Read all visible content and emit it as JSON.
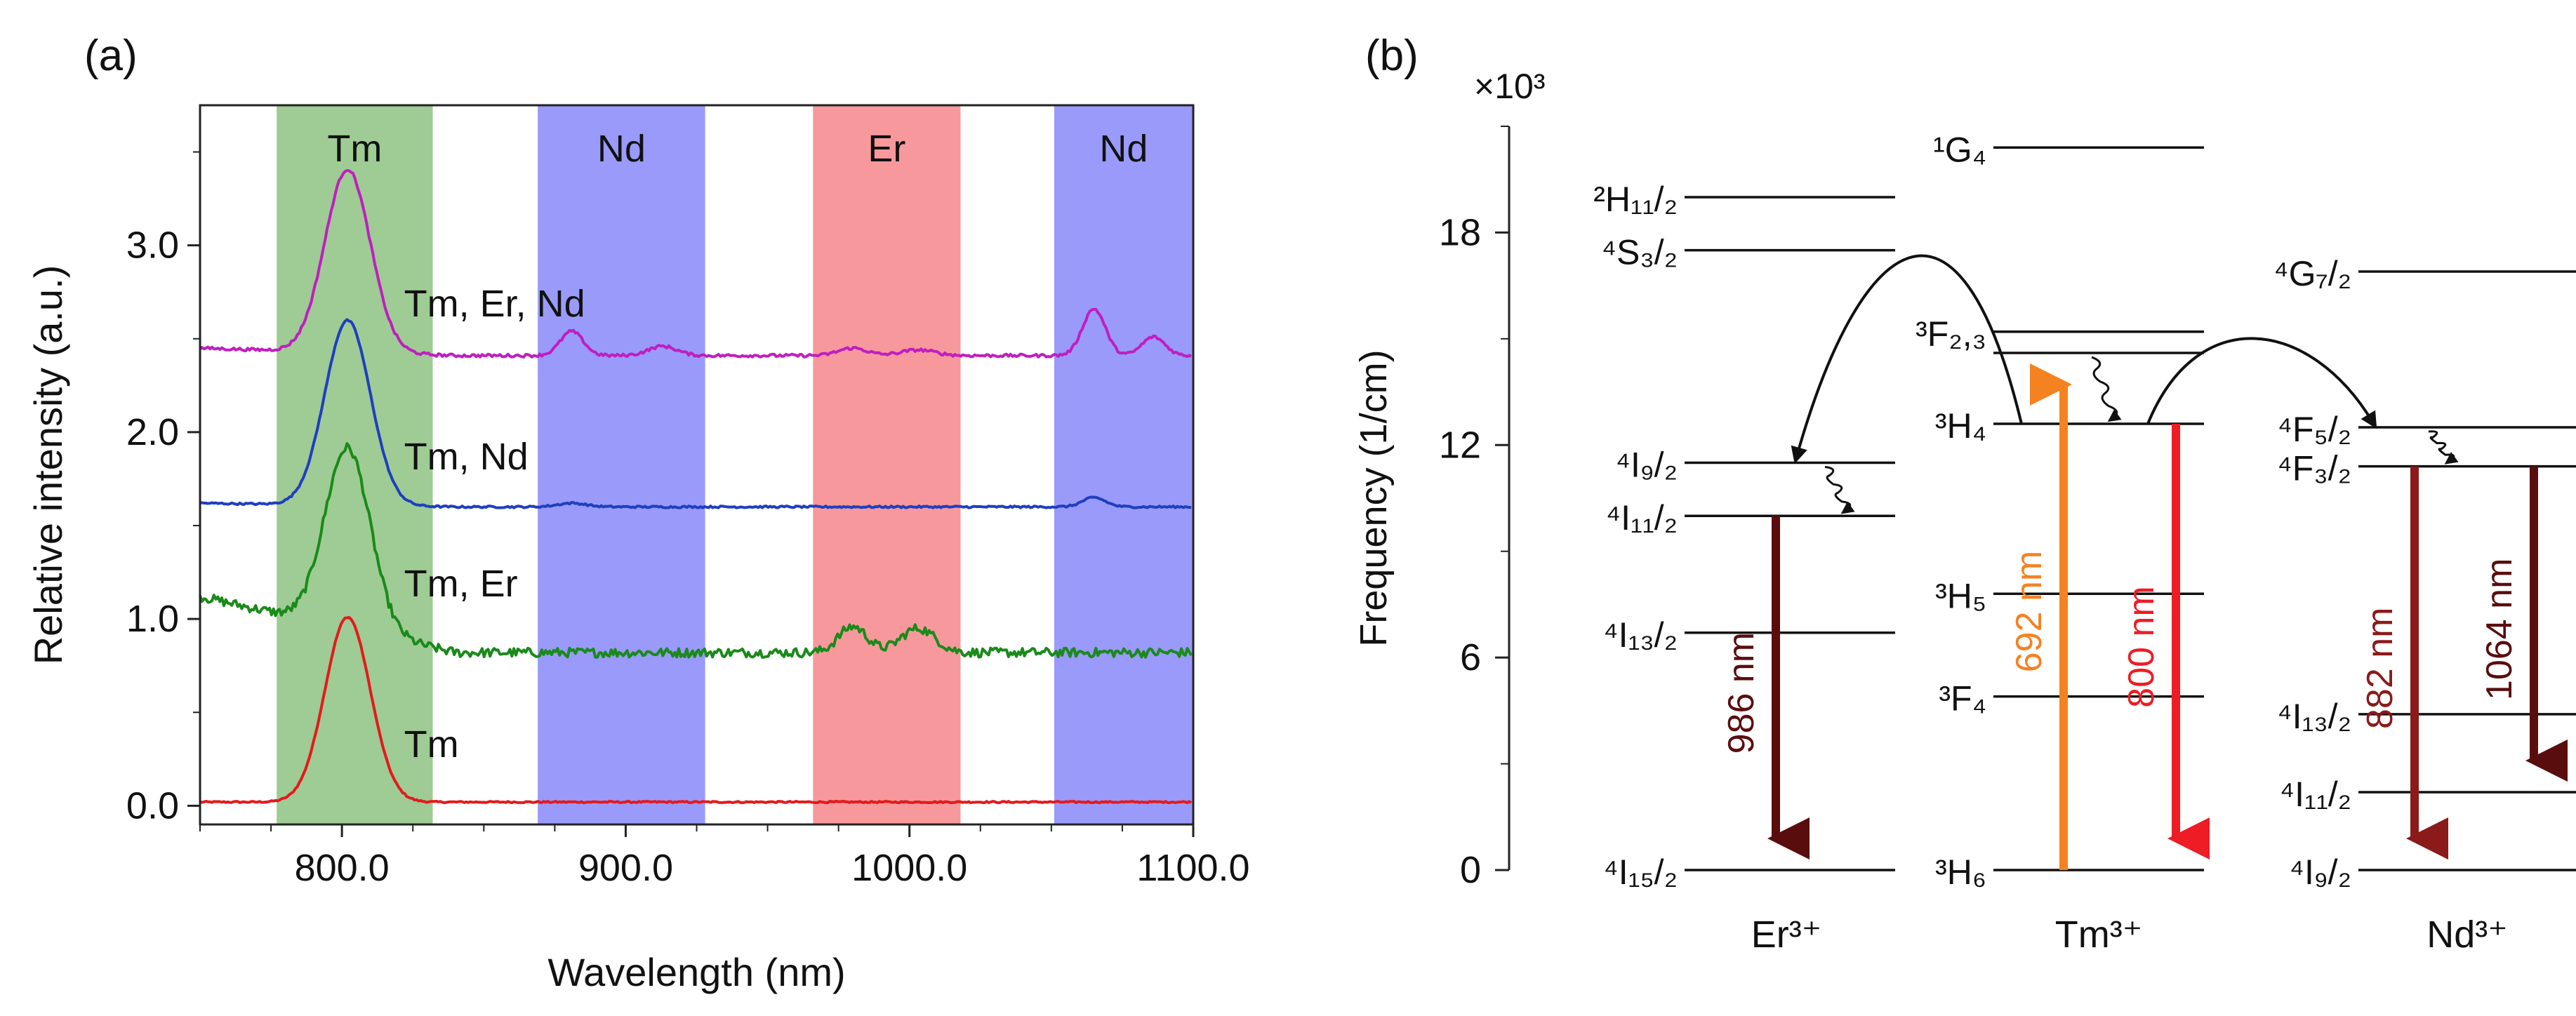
{
  "panels": {
    "a_label": "(a)",
    "b_label": "(b)"
  },
  "chart_data": [
    {
      "type": "line",
      "panel": "(a)",
      "title": "",
      "xlabel": "Wavelength (nm)",
      "ylabel": "Relative intensity (a.u.)",
      "xlim": [
        750,
        1100
      ],
      "ylim": [
        -0.1,
        3.75
      ],
      "xticks": [
        {
          "v": 800,
          "label": "800.0"
        },
        {
          "v": 900,
          "label": "900.0"
        },
        {
          "v": 1000,
          "label": "1000.0"
        },
        {
          "v": 1100,
          "label": "1100.0"
        }
      ],
      "yticks": [
        {
          "v": 0,
          "label": "0.0"
        },
        {
          "v": 1,
          "label": "1.0"
        },
        {
          "v": 2,
          "label": "2.0"
        },
        {
          "v": 3,
          "label": "3.0"
        }
      ],
      "bands": [
        {
          "label": "Tm",
          "x0": 777,
          "x1": 832,
          "color": "#9fcb95"
        },
        {
          "label": "Nd",
          "x0": 869,
          "x1": 928,
          "color": "#9a9afb"
        },
        {
          "label": "Er",
          "x0": 966,
          "x1": 1018,
          "color": "#f7999c"
        },
        {
          "label": "Nd",
          "x0": 1051,
          "x1": 1100,
          "color": "#9a9afb"
        }
      ],
      "series": [
        {
          "name": "Tm",
          "color": "#e31a1c",
          "peakColor": "#8b3a1e",
          "baseline": 0.02,
          "peaks": [
            {
              "c": 802,
              "w": 8,
              "a": 0.99
            }
          ],
          "slope": 0,
          "noise": 0.004,
          "label_x": 812,
          "label_y": 0.26
        },
        {
          "name": "Tm, Er",
          "color": "#1a8a1a",
          "baseline": 0.82,
          "peaks": [
            {
              "c": 802,
              "w": 8,
              "a": 0.97
            },
            {
              "c": 980,
              "w": 5,
              "a": 0.14
            },
            {
              "c": 1003,
              "w": 6,
              "a": 0.13
            }
          ],
          "slope": 0.3,
          "noise": 0.025,
          "label_x": 812,
          "label_y": 1.12
        },
        {
          "name": "Tm, Nd",
          "color": "#1f3fbf",
          "baseline": 1.6,
          "peaks": [
            {
              "c": 802,
              "w": 8,
              "a": 0.99
            },
            {
              "c": 881,
              "w": 5,
              "a": 0.02
            },
            {
              "c": 1065,
              "w": 4,
              "a": 0.05
            }
          ],
          "slope": 0.02,
          "noise": 0.005,
          "label_x": 812,
          "label_y": 1.8
        },
        {
          "name": "Tm, Er, Nd",
          "color": "#c01ec0",
          "baseline": 2.41,
          "peaks": [
            {
              "c": 802,
              "w": 8,
              "a": 0.98
            },
            {
              "c": 881,
              "w": 4,
              "a": 0.13
            },
            {
              "c": 913,
              "w": 5,
              "a": 0.05
            },
            {
              "c": 980,
              "w": 5,
              "a": 0.04
            },
            {
              "c": 1003,
              "w": 6,
              "a": 0.03
            },
            {
              "c": 1065,
              "w": 4,
              "a": 0.25
            },
            {
              "c": 1086,
              "w": 4,
              "a": 0.1
            }
          ],
          "slope": 0.04,
          "noise": 0.008,
          "label_x": 812,
          "label_y": 2.62
        }
      ]
    },
    {
      "type": "diagram",
      "panel": "(b)",
      "ylabel": "Frequency (1/cm)",
      "multiplier": "×10³",
      "ylim": [
        0,
        21
      ],
      "yticks": [
        {
          "v": 0,
          "label": "0"
        },
        {
          "v": 6,
          "label": "6"
        },
        {
          "v": 12,
          "label": "12"
        },
        {
          "v": 18,
          "label": "18"
        }
      ],
      "ions": [
        {
          "name": "Er³⁺",
          "levels": [
            {
              "v": 19.0,
              "label": "²H₁₁/₂"
            },
            {
              "v": 17.5,
              "label": "⁴S₃/₂"
            },
            {
              "v": 11.5,
              "label": "⁴I₉/₂"
            },
            {
              "v": 10.0,
              "label": "⁴I₁₁/₂"
            },
            {
              "v": 6.7,
              "label": "⁴I₁₃/₂"
            },
            {
              "v": 0.0,
              "label": "⁴I₁₅/₂"
            }
          ]
        },
        {
          "name": "Tm³⁺",
          "levels": [
            {
              "v": 20.4,
              "label": "¹G₄"
            },
            {
              "v": 15.2,
              "label": "³F₂,₃"
            },
            {
              "v": 14.6,
              "label": ""
            },
            {
              "v": 12.6,
              "label": "³H₄"
            },
            {
              "v": 7.8,
              "label": "³H₅"
            },
            {
              "v": 4.9,
              "label": "³F₄"
            },
            {
              "v": 0.0,
              "label": "³H₆"
            }
          ]
        },
        {
          "name": "Nd³⁺",
          "levels": [
            {
              "v": 16.9,
              "label": "⁴G₇/₂"
            },
            {
              "v": 12.5,
              "label": "⁴F₅/₂"
            },
            {
              "v": 11.4,
              "label": "⁴F₃/₂"
            },
            {
              "v": 4.4,
              "label": "⁴I₁₃/₂"
            },
            {
              "v": 2.2,
              "label": "⁴I₁₁/₂"
            },
            {
              "v": 0.0,
              "label": "⁴I₉/₂"
            }
          ]
        }
      ],
      "transitions": [
        {
          "label": "986 nm",
          "from": 10.0,
          "to": 0.0,
          "color": "#5a0d0d",
          "ion": 0
        },
        {
          "label": "692 nm",
          "from": 0.0,
          "to": 14.6,
          "color": "#f58220",
          "ion": 1
        },
        {
          "label": "800 nm",
          "from": 12.6,
          "to": 0.0,
          "color": "#ee1c25",
          "ion": 1
        },
        {
          "label": "882 nm",
          "from": 11.4,
          "to": 0.0,
          "color": "#8b1a1a",
          "ion": 2
        },
        {
          "label": "1064 nm",
          "from": 11.4,
          "to": 2.2,
          "color": "#5a0d0d",
          "ion": 2
        }
      ]
    }
  ]
}
